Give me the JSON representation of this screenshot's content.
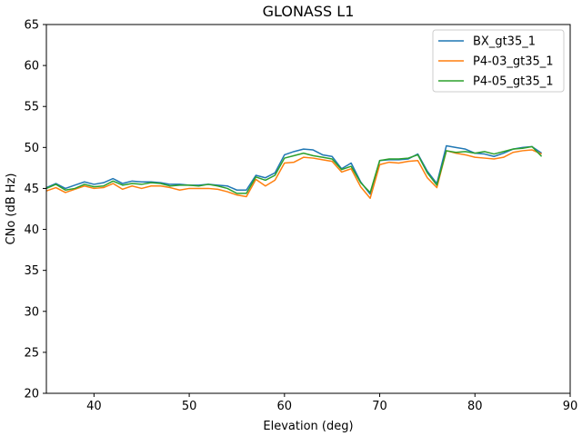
{
  "chart_data": {
    "type": "line",
    "title": "GLONASS L1",
    "xlabel": "Elevation (deg)",
    "ylabel": "CNo (dB Hz)",
    "xlim": [
      35,
      90
    ],
    "ylim": [
      20,
      65
    ],
    "xticks": [
      40,
      50,
      60,
      70,
      80,
      90
    ],
    "yticks": [
      20,
      25,
      30,
      35,
      40,
      45,
      50,
      55,
      60,
      65
    ],
    "grid": false,
    "legend_position": "top-right",
    "x": [
      35,
      36,
      37,
      38,
      39,
      40,
      41,
      42,
      43,
      44,
      45,
      46,
      47,
      48,
      49,
      50,
      51,
      52,
      53,
      54,
      55,
      56,
      57,
      58,
      59,
      60,
      61,
      62,
      63,
      64,
      65,
      66,
      67,
      68,
      69,
      70,
      71,
      72,
      73,
      74,
      75,
      76,
      77,
      78,
      79,
      80,
      81,
      82,
      83,
      84,
      85,
      86,
      87
    ],
    "series": [
      {
        "name": "BX_gt35_1",
        "color": "#1f77b4",
        "values": [
          45.1,
          45.6,
          45.0,
          45.4,
          45.8,
          45.5,
          45.7,
          46.2,
          45.6,
          45.9,
          45.8,
          45.8,
          45.7,
          45.5,
          45.5,
          45.4,
          45.4,
          45.5,
          45.4,
          45.3,
          44.8,
          44.8,
          46.6,
          46.3,
          46.9,
          49.1,
          49.5,
          49.8,
          49.7,
          49.1,
          48.9,
          47.4,
          48.1,
          45.8,
          44.3,
          48.4,
          48.5,
          48.5,
          48.6,
          49.2,
          47.1,
          45.6,
          50.2,
          50.0,
          49.8,
          49.3,
          49.2,
          48.9,
          49.3,
          49.8,
          50.0,
          50.1,
          49.3
        ]
      },
      {
        "name": "P4-03_gt35_1",
        "color": "#ff7f0e",
        "values": [
          44.7,
          45.1,
          44.5,
          44.9,
          45.3,
          45.0,
          45.1,
          45.6,
          44.9,
          45.3,
          45.0,
          45.3,
          45.3,
          45.1,
          44.8,
          45.0,
          45.0,
          45.0,
          44.9,
          44.6,
          44.2,
          44.0,
          46.1,
          45.3,
          46.0,
          48.1,
          48.2,
          48.8,
          48.7,
          48.5,
          48.3,
          47.0,
          47.4,
          45.2,
          43.8,
          47.9,
          48.2,
          48.1,
          48.3,
          48.4,
          46.3,
          45.1,
          49.6,
          49.3,
          49.1,
          48.8,
          48.7,
          48.6,
          48.8,
          49.4,
          49.6,
          49.7,
          49.2
        ]
      },
      {
        "name": "P4-05_gt35_1",
        "color": "#2ca02c",
        "values": [
          45.0,
          45.5,
          44.8,
          45.0,
          45.5,
          45.2,
          45.3,
          45.9,
          45.4,
          45.6,
          45.5,
          45.7,
          45.6,
          45.3,
          45.4,
          45.4,
          45.3,
          45.5,
          45.3,
          45.0,
          44.4,
          44.4,
          46.4,
          46.0,
          46.6,
          48.7,
          49.0,
          49.3,
          49.0,
          48.8,
          48.6,
          47.3,
          47.7,
          45.7,
          44.5,
          48.4,
          48.6,
          48.6,
          48.7,
          49.1,
          46.9,
          45.4,
          49.6,
          49.4,
          49.5,
          49.3,
          49.5,
          49.2,
          49.5,
          49.8,
          49.9,
          50.1,
          48.9
        ]
      }
    ]
  }
}
